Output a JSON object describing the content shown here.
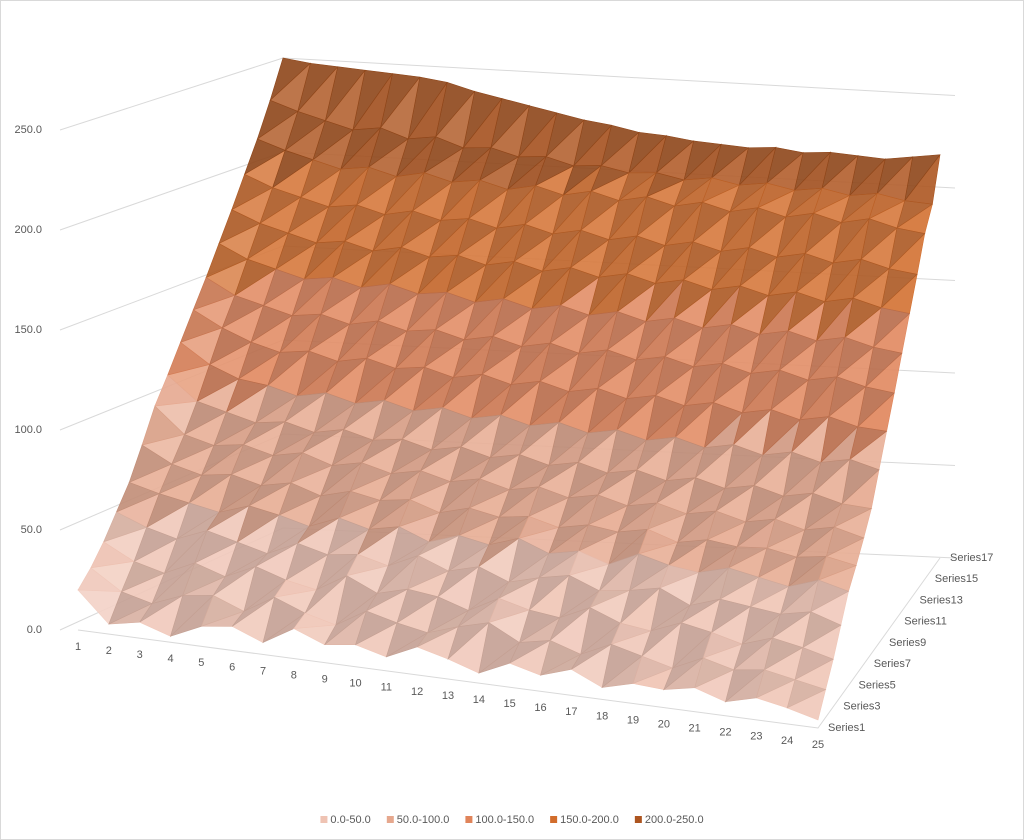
{
  "chart_data": {
    "type": "surface3d",
    "categories": [
      "1",
      "2",
      "3",
      "4",
      "5",
      "6",
      "7",
      "8",
      "9",
      "10",
      "11",
      "12",
      "13",
      "14",
      "15",
      "16",
      "17",
      "18",
      "19",
      "20",
      "21",
      "22",
      "23",
      "24",
      "25"
    ],
    "depth_categories": [
      "Series1",
      null,
      "Series3",
      null,
      "Series5",
      null,
      "Series7",
      null,
      "Series9",
      null,
      "Series11",
      null,
      "Series13",
      null,
      "Series15",
      null,
      "Series17"
    ],
    "values": [
      [
        20,
        5,
        8,
        3,
        10,
        12,
        6,
        15,
        9,
        11,
        7,
        14,
        10,
        5,
        12,
        8,
        13,
        6,
        10,
        9,
        12,
        7,
        11,
        8,
        4
      ],
      [
        28,
        18,
        14,
        20,
        22,
        16,
        25,
        19,
        15,
        24,
        20,
        17,
        22,
        26,
        18,
        21,
        16,
        23,
        19,
        15,
        22,
        18,
        20,
        17,
        14
      ],
      [
        38,
        30,
        26,
        33,
        28,
        35,
        30,
        27,
        36,
        29,
        33,
        31,
        26,
        34,
        30,
        28,
        35,
        29,
        27,
        33,
        30,
        26,
        31,
        28,
        24
      ],
      [
        50,
        44,
        40,
        46,
        42,
        38,
        45,
        41,
        43,
        39,
        46,
        40,
        44,
        38,
        42,
        45,
        39,
        41,
        44,
        37,
        42,
        40,
        38,
        41,
        36
      ],
      [
        62,
        58,
        55,
        52,
        57,
        54,
        50,
        56,
        52,
        55,
        49,
        54,
        51,
        56,
        50,
        53,
        48,
        55,
        51,
        49,
        53,
        50,
        47,
        52,
        48
      ],
      [
        78,
        70,
        66,
        68,
        64,
        67,
        62,
        66,
        63,
        65,
        60,
        64,
        61,
        63,
        59,
        62,
        60,
        63,
        58,
        61,
        59,
        60,
        57,
        59,
        56
      ],
      [
        95,
        82,
        78,
        80,
        76,
        79,
        74,
        77,
        73,
        76,
        72,
        75,
        71,
        74,
        70,
        73,
        69,
        72,
        68,
        71,
        67,
        70,
        66,
        69,
        65
      ],
      [
        108,
        96,
        92,
        88,
        90,
        86,
        89,
        85,
        87,
        83,
        86,
        82,
        85,
        81,
        84,
        80,
        83,
        79,
        82,
        78,
        81,
        77,
        80,
        76,
        75
      ],
      [
        122,
        112,
        106,
        104,
        100,
        103,
        99,
        102,
        98,
        101,
        97,
        100,
        96,
        99,
        95,
        98,
        94,
        97,
        93,
        96,
        92,
        95,
        91,
        94,
        90
      ],
      [
        136,
        128,
        122,
        118,
        120,
        116,
        119,
        115,
        117,
        113,
        116,
        112,
        115,
        111,
        114,
        110,
        113,
        109,
        112,
        108,
        111,
        107,
        110,
        106,
        105
      ],
      [
        150,
        142,
        138,
        134,
        136,
        132,
        135,
        131,
        133,
        129,
        132,
        128,
        131,
        127,
        130,
        126,
        129,
        125,
        128,
        124,
        127,
        123,
        126,
        122,
        120
      ],
      [
        165,
        158,
        154,
        150,
        152,
        148,
        151,
        147,
        149,
        145,
        148,
        144,
        147,
        143,
        146,
        142,
        145,
        141,
        144,
        140,
        143,
        139,
        142,
        138,
        136
      ],
      [
        180,
        174,
        170,
        166,
        168,
        164,
        167,
        163,
        165,
        161,
        164,
        160,
        163,
        159,
        162,
        158,
        161,
        157,
        160,
        156,
        159,
        155,
        158,
        154,
        152
      ],
      [
        196,
        190,
        186,
        182,
        184,
        180,
        183,
        179,
        181,
        177,
        180,
        176,
        179,
        175,
        178,
        174,
        177,
        173,
        176,
        172,
        175,
        171,
        174,
        170,
        168
      ],
      [
        212,
        207,
        203,
        199,
        201,
        197,
        200,
        196,
        198,
        194,
        197,
        193,
        196,
        192,
        195,
        191,
        194,
        190,
        193,
        189,
        192,
        188,
        191,
        187,
        185
      ],
      [
        230,
        225,
        221,
        217,
        219,
        214,
        216,
        211,
        212,
        208,
        209,
        205,
        206,
        203,
        204,
        201,
        203,
        200,
        202,
        199,
        201,
        198,
        200,
        197,
        196
      ],
      [
        250,
        248,
        247,
        246,
        245,
        244,
        242,
        238,
        235,
        232,
        229,
        226,
        224,
        221,
        220,
        218,
        217,
        216,
        217,
        215,
        216,
        215,
        214,
        216,
        218
      ]
    ],
    "zlim": [
      0,
      250
    ],
    "zticks": [
      {
        "value": 0,
        "label": "0.0"
      },
      {
        "value": 50,
        "label": "50.0"
      },
      {
        "value": 100,
        "label": "100.0"
      },
      {
        "value": 150,
        "label": "150.0"
      },
      {
        "value": 200,
        "label": "200.0"
      },
      {
        "value": 250,
        "label": "250.0"
      }
    ],
    "grid": true,
    "legend_position": "bottom",
    "bands": [
      {
        "label": "0.0-50.0",
        "from": 0,
        "to": 50,
        "color": "#efc3b3"
      },
      {
        "label": "50.0-100.0",
        "from": 50,
        "to": 100,
        "color": "#e6a88e"
      },
      {
        "label": "100.0-150.0",
        "from": 100,
        "to": 150,
        "color": "#e0845a"
      },
      {
        "label": "150.0-200.0",
        "from": 150,
        "to": 200,
        "color": "#d26d2c"
      },
      {
        "label": "200.0-250.0",
        "from": 200,
        "to": 250,
        "color": "#ad5520"
      }
    ]
  }
}
